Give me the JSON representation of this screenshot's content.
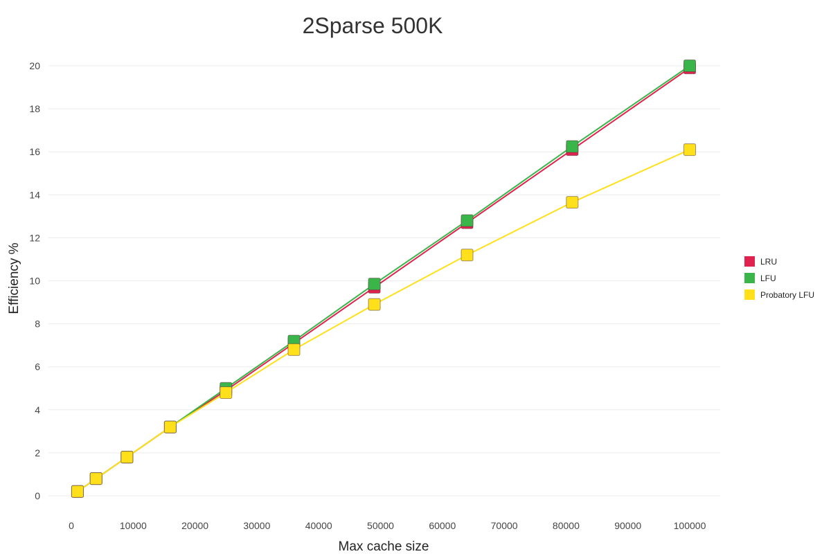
{
  "chart_data": {
    "type": "line",
    "title": "2Sparse 500K",
    "xlabel": "Max cache size",
    "ylabel": "Efficiency %",
    "xlim": [
      0,
      100000
    ],
    "ylim": [
      0,
      20
    ],
    "x_ticks": [
      0,
      10000,
      20000,
      30000,
      40000,
      50000,
      60000,
      70000,
      80000,
      90000,
      100000
    ],
    "y_ticks": [
      0,
      2,
      4,
      6,
      8,
      10,
      12,
      14,
      16,
      18,
      20
    ],
    "grid": true,
    "legend_position": "right",
    "x": [
      1000,
      4000,
      9000,
      16000,
      25000,
      36000,
      49000,
      64000,
      81000,
      100000
    ],
    "series": [
      {
        "name": "LRU",
        "color": "#e0234e",
        "values": [
          0.2,
          0.8,
          1.8,
          3.2,
          4.9,
          7.1,
          9.7,
          12.7,
          16.1,
          19.9
        ]
      },
      {
        "name": "LFU",
        "color": "#3ab54a",
        "values": [
          0.2,
          0.8,
          1.8,
          3.2,
          5.0,
          7.2,
          9.85,
          12.8,
          16.25,
          20.0
        ]
      },
      {
        "name": "Probatory LFU",
        "color": "#ffe01b",
        "values": [
          0.2,
          0.8,
          1.8,
          3.2,
          4.8,
          6.8,
          8.9,
          11.2,
          13.65,
          16.1
        ]
      }
    ]
  }
}
